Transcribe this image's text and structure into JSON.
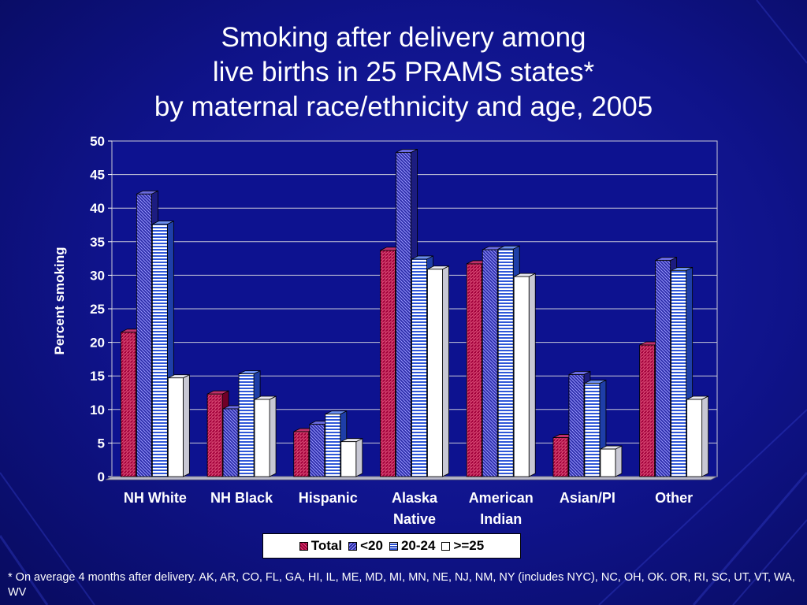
{
  "title": {
    "lines": [
      "Smoking after delivery among",
      "live births in 25 PRAMS states*",
      "by maternal race/ethnicity and age, 2005"
    ]
  },
  "chart_data": {
    "type": "bar",
    "title": "Smoking after delivery among live births in 25 PRAMS states* by maternal race/ethnicity and age, 2005",
    "xlabel": "",
    "ylabel": "Percent smoking",
    "ylim": [
      0,
      50
    ],
    "yticks": [
      0,
      5,
      10,
      15,
      20,
      25,
      30,
      35,
      40,
      45,
      50
    ],
    "grid": true,
    "legend_position": "bottom",
    "categories": [
      [
        "NH White"
      ],
      [
        "NH Black"
      ],
      [
        "Hispanic"
      ],
      [
        "Alaska",
        "Native"
      ],
      [
        "American",
        "Indian"
      ],
      [
        "Asian/PI"
      ],
      [
        "Other"
      ]
    ],
    "series": [
      {
        "name": "Total",
        "values": [
          21.5,
          12.3,
          6.7,
          33.7,
          31.7,
          5.8,
          19.6
        ]
      },
      {
        "name": "<20",
        "values": [
          42.1,
          10.1,
          7.8,
          48.3,
          33.8,
          15.2,
          32.2
        ]
      },
      {
        "name": "20-24",
        "values": [
          37.6,
          15.3,
          9.3,
          32.4,
          33.9,
          13.9,
          30.7
        ]
      },
      {
        "name": ">=25",
        "values": [
          14.7,
          11.5,
          5.2,
          30.9,
          29.8,
          4.1,
          11.5
        ]
      }
    ]
  },
  "colors": {
    "background": "#0f138a",
    "plot_area": "#0d1290",
    "total": "#b00040",
    "under20": "#3a3ac0",
    "age20_24": "#3f6ae0",
    "age25plus": "#ffffff"
  },
  "footnote": "* On average 4 months after delivery. AK, AR, CO, FL, GA, HI, IL, ME, MD, MI, MN, NE, NJ, NM, NY (includes NYC), NC, OH, OK. OR, RI, SC, UT, VT, WA, WV"
}
